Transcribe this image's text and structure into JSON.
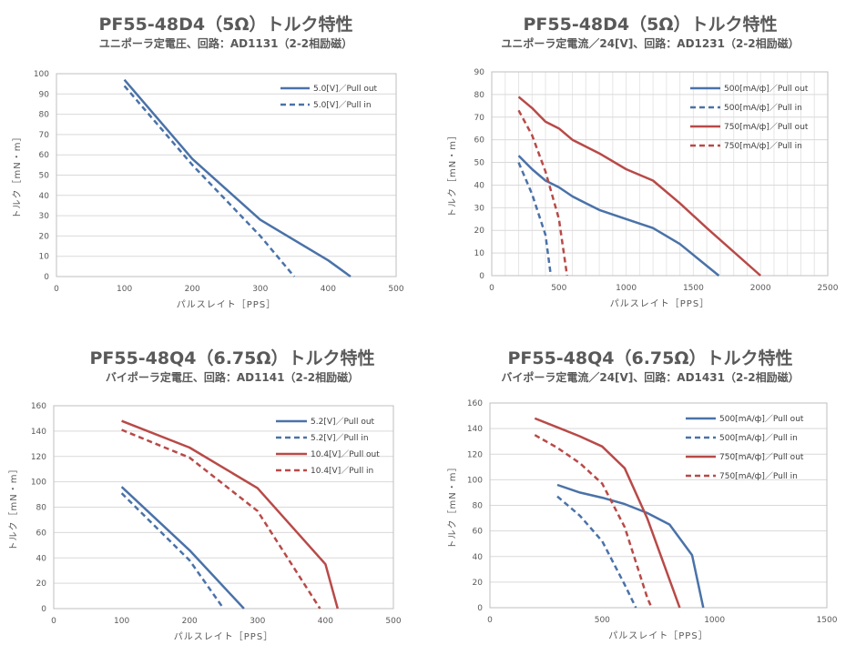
{
  "colors": {
    "blue": "#4a72a8",
    "red": "#b84a48",
    "grid": "#d9d9d9",
    "axis": "#bfbfbf"
  },
  "chart_data": [
    {
      "type": "line",
      "title": "PF55-48D4（5Ω）トルク特性",
      "subtitle": "ユニポーラ定電圧、回路：AD1131（2-2相励磁）",
      "xlabel": "パルスレイト［PPS］",
      "ylabel": "トルク［mN・m］",
      "xlim": [
        0,
        500
      ],
      "ylim": [
        0,
        100
      ],
      "xticks": [
        "0",
        "100",
        "200",
        "300",
        "400",
        "500"
      ],
      "yticks": [
        "0",
        "10",
        "20",
        "30",
        "40",
        "50",
        "60",
        "70",
        "80",
        "90",
        "100"
      ],
      "grid": "horizontal",
      "legend": "top-right",
      "series": [
        {
          "name": "5.0[V]／Pull out",
          "color": "blue",
          "dash": false,
          "points": [
            [
              100,
              97
            ],
            [
              200,
              58
            ],
            [
              300,
              28
            ],
            [
              400,
              8
            ],
            [
              433,
              0
            ]
          ]
        },
        {
          "name": "5.0[V]／Pull in",
          "color": "blue",
          "dash": true,
          "points": [
            [
              100,
              94
            ],
            [
              200,
              55
            ],
            [
              300,
              20
            ],
            [
              350,
              0
            ]
          ]
        }
      ]
    },
    {
      "type": "line",
      "title": "PF55-48D4（5Ω）トルク特性",
      "subtitle": "ユニポーラ定電流／24[V]、回路：AD1231（2-2相励磁）",
      "xlabel": "パルスレイト［PPS］",
      "ylabel": "トルク［mN・m］",
      "xlim": [
        0,
        2500
      ],
      "ylim": [
        0,
        90
      ],
      "xticks": [
        "0",
        "500",
        "1000",
        "1500",
        "2000",
        "2500"
      ],
      "yticks": [
        "0",
        "10",
        "20",
        "30",
        "40",
        "50",
        "60",
        "70",
        "80",
        "90"
      ],
      "grid": "horizontal",
      "minor_vertical_grid": 100,
      "legend": "top-right",
      "series": [
        {
          "name": "500[mA/ф]／Pull out",
          "color": "blue",
          "dash": false,
          "points": [
            [
              200,
              53
            ],
            [
              300,
              47
            ],
            [
              400,
              42
            ],
            [
              500,
              39
            ],
            [
              600,
              35
            ],
            [
              700,
              32
            ],
            [
              800,
              29
            ],
            [
              1000,
              25
            ],
            [
              1200,
              21
            ],
            [
              1400,
              14
            ],
            [
              1690,
              0
            ]
          ]
        },
        {
          "name": "500[mA/ф]／Pull in",
          "color": "blue",
          "dash": true,
          "points": [
            [
              200,
              50
            ],
            [
              300,
              36
            ],
            [
              400,
              18
            ],
            [
              440,
              0
            ]
          ]
        },
        {
          "name": "750[mA/ф]／Pull out",
          "color": "red",
          "dash": false,
          "points": [
            [
              200,
              79
            ],
            [
              300,
              74
            ],
            [
              400,
              68
            ],
            [
              500,
              65
            ],
            [
              600,
              60
            ],
            [
              800,
              54
            ],
            [
              1000,
              47
            ],
            [
              1200,
              42
            ],
            [
              1400,
              32
            ],
            [
              1600,
              21
            ],
            [
              2000,
              0
            ]
          ]
        },
        {
          "name": "750[mA/ф]／Pull in",
          "color": "red",
          "dash": true,
          "points": [
            [
              200,
              73
            ],
            [
              300,
              62
            ],
            [
              400,
              46
            ],
            [
              500,
              25
            ],
            [
              560,
              0
            ]
          ]
        }
      ]
    },
    {
      "type": "line",
      "title": "PF55-48Q4（6.75Ω）トルク特性",
      "subtitle": "バイポーラ定電圧、回路：AD1141（2-2相励磁）",
      "xlabel": "パルスレイト［PPS］",
      "ylabel": "トルク［mN・m］",
      "xlim": [
        0,
        500
      ],
      "ylim": [
        0,
        160
      ],
      "xticks": [
        "0",
        "100",
        "200",
        "300",
        "400",
        "500"
      ],
      "yticks": [
        "0",
        "20",
        "40",
        "60",
        "80",
        "100",
        "120",
        "140",
        "160"
      ],
      "grid": "horizontal",
      "legend": "top-right",
      "series": [
        {
          "name": "5.2[V]／Pull out",
          "color": "blue",
          "dash": false,
          "points": [
            [
              100,
              96
            ],
            [
              200,
              46
            ],
            [
              280,
              0
            ]
          ]
        },
        {
          "name": "5.2[V]／Pull in",
          "color": "blue",
          "dash": true,
          "points": [
            [
              100,
              91
            ],
            [
              200,
              38
            ],
            [
              250,
              0
            ]
          ]
        },
        {
          "name": "10.4[V]／Pull out",
          "color": "red",
          "dash": false,
          "points": [
            [
              100,
              148
            ],
            [
              200,
              127
            ],
            [
              300,
              95
            ],
            [
              400,
              35
            ],
            [
              418,
              0
            ]
          ]
        },
        {
          "name": "10.4[V]／Pull in",
          "color": "red",
          "dash": true,
          "points": [
            [
              100,
              141
            ],
            [
              200,
              119
            ],
            [
              300,
              77
            ],
            [
              392,
              0
            ]
          ]
        }
      ]
    },
    {
      "type": "line",
      "title": "PF55-48Q4（6.75Ω）トルク特性",
      "subtitle": "バイポーラ定電流／24[V]、回路：AD1431（2-2相励磁）",
      "xlabel": "パルスレイト［PPS］",
      "ylabel": "トルク［mN・m］",
      "xlim": [
        0,
        1500
      ],
      "ylim": [
        0,
        160
      ],
      "xticks": [
        "0",
        "500",
        "1000",
        "1500"
      ],
      "yticks": [
        "0",
        "20",
        "40",
        "60",
        "80",
        "100",
        "120",
        "140",
        "160"
      ],
      "grid": "horizontal",
      "legend": "top-right",
      "series": [
        {
          "name": "500[mA/ф]／Pull out",
          "color": "blue",
          "dash": false,
          "points": [
            [
              300,
              96
            ],
            [
              400,
              90
            ],
            [
              500,
              86
            ],
            [
              600,
              81
            ],
            [
              700,
              74
            ],
            [
              800,
              65
            ],
            [
              900,
              41
            ],
            [
              950,
              0
            ]
          ]
        },
        {
          "name": "500[mA/ф]／Pull in",
          "color": "blue",
          "dash": true,
          "points": [
            [
              300,
              87
            ],
            [
              400,
              72
            ],
            [
              500,
              52
            ],
            [
              600,
              18
            ],
            [
              650,
              0
            ]
          ]
        },
        {
          "name": "750[mA/ф]／Pull out",
          "color": "red",
          "dash": false,
          "points": [
            [
              200,
              148
            ],
            [
              300,
              141
            ],
            [
              400,
              134
            ],
            [
              500,
              126
            ],
            [
              600,
              109
            ],
            [
              700,
              70
            ],
            [
              845,
              0
            ]
          ]
        },
        {
          "name": "750[mA/ф]／Pull in",
          "color": "red",
          "dash": true,
          "points": [
            [
              200,
              135
            ],
            [
              300,
              125
            ],
            [
              400,
              113
            ],
            [
              500,
              97
            ],
            [
              600,
              63
            ],
            [
              700,
              8
            ],
            [
              720,
              0
            ]
          ]
        }
      ]
    }
  ]
}
